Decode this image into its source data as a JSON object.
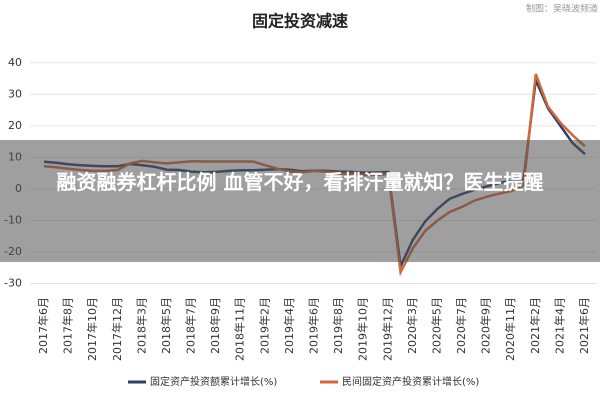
{
  "chart_data": {
    "type": "line",
    "title": "固定投资减速",
    "source": "制图：吴晓波频道",
    "categories": [
      "2017年6月",
      null,
      "2017年8月",
      null,
      "2017年10月",
      null,
      "2017年12月",
      null,
      "2018年3月",
      null,
      "2018年5月",
      null,
      "2018年7月",
      null,
      "2018年9月",
      null,
      "2018年11月",
      null,
      "2019年2月",
      null,
      "2019年4月",
      null,
      "2019年6月",
      null,
      "2019年8月",
      null,
      "2019年10月",
      null,
      "2019年12月",
      null,
      "2020年3月",
      null,
      "2020年5月",
      null,
      "2020年7月",
      null,
      "2020年9月",
      null,
      "2020年11月",
      null,
      "2021年2月",
      null,
      "2021年4月",
      null,
      "2021年6月"
    ],
    "series": [
      {
        "name": "固定资产投资额累计增长(%)",
        "color": "#2e3f6e",
        "values": [
          8.6,
          8.3,
          7.8,
          7.5,
          7.3,
          7.2,
          7.2,
          7.9,
          7.5,
          7.0,
          6.1,
          6.0,
          5.5,
          5.3,
          5.4,
          5.7,
          5.9,
          5.9,
          6.1,
          6.3,
          6.1,
          5.6,
          5.8,
          5.7,
          5.5,
          5.4,
          5.2,
          5.2,
          5.4,
          -24.5,
          -16.1,
          -10.3,
          -6.3,
          -3.1,
          -1.6,
          -0.3,
          0.8,
          1.8,
          2.6,
          2.9,
          34.5,
          25.5,
          20,
          14.5,
          11
        ]
      },
      {
        "name": "民间固定资产投资累计增长(%)",
        "color": "#d0683a",
        "values": [
          7.2,
          6.9,
          6.4,
          6.0,
          5.7,
          5.7,
          6.0,
          8.1,
          8.9,
          8.4,
          8.1,
          8.4,
          8.8,
          8.7,
          8.7,
          8.7,
          8.7,
          8.7,
          7.5,
          6.4,
          5.5,
          5.3,
          5.7,
          5.4,
          4.9,
          4.7,
          4.4,
          4.5,
          4.7,
          -26.4,
          -18.8,
          -13.3,
          -10.0,
          -7.3,
          -5.7,
          -3.7,
          -2.5,
          -1.5,
          -0.7,
          1.0,
          36.4,
          26,
          21,
          17,
          13.5
        ]
      }
    ],
    "ylim": [
      -33,
      45
    ],
    "yticks": [
      -30,
      -20,
      -10,
      0,
      10,
      20,
      30,
      40
    ],
    "grid": true
  },
  "overlay_text": "融资融券杠杆比例 血管不好，看排汗量就知？医生提醒"
}
